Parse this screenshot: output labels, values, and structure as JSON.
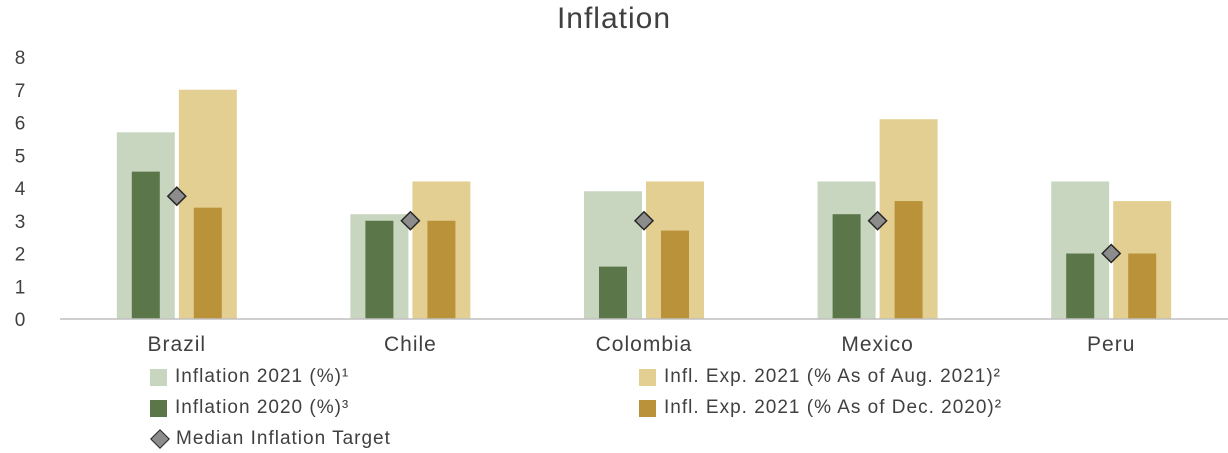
{
  "chart_data": {
    "type": "bar",
    "title": "Inflation",
    "xlabel": "",
    "ylabel": "",
    "ylim": [
      0,
      8
    ],
    "yticks": [
      0,
      1,
      2,
      3,
      4,
      5,
      6,
      7,
      8
    ],
    "grid": false,
    "legend_position": "bottom",
    "categories": [
      "Brazil",
      "Chile",
      "Colombia",
      "Mexico",
      "Peru"
    ],
    "series": [
      {
        "name": "Inflation 2021 (%)¹",
        "color": "#c8d6c0",
        "values": [
          5.7,
          3.2,
          3.9,
          4.2,
          4.2
        ]
      },
      {
        "name": "Infl. Exp. 2021 (% As of Aug. 2021)²",
        "color": "#e4cf92",
        "values": [
          7.0,
          4.2,
          4.2,
          6.1,
          3.6
        ]
      },
      {
        "name": "Inflation 2020 (%)³",
        "color": "#5b7649",
        "values": [
          4.5,
          3.0,
          1.6,
          3.2,
          2.0
        ]
      },
      {
        "name": "Infl. Exp. 2021 (% As of Dec. 2020)²",
        "color": "#b9923a",
        "values": [
          3.4,
          3.0,
          2.7,
          3.6,
          2.0
        ]
      },
      {
        "name": "Median Inflation Target",
        "marker": "diamond",
        "color": "#8c8c8c",
        "values": [
          3.75,
          3.0,
          3.0,
          3.0,
          2.0
        ]
      }
    ]
  }
}
